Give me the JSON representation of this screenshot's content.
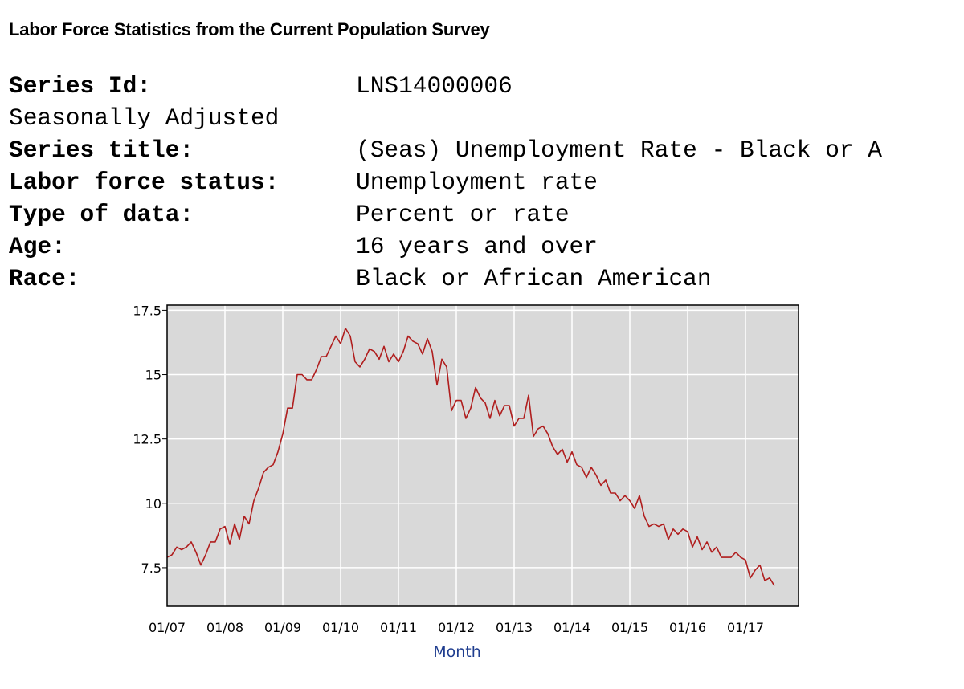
{
  "header": {
    "title": "Labor Force Statistics from the Current Population Survey"
  },
  "series_info": [
    {
      "label": "Series Id:",
      "value": "LNS14000006",
      "bold": true
    },
    {
      "label": "Seasonally Adjusted",
      "value": "",
      "bold": false
    },
    {
      "label": "Series title:",
      "value": "(Seas) Unemployment Rate - Black or A",
      "bold": true
    },
    {
      "label": "Labor force status:",
      "value": "Unemployment rate",
      "bold": true
    },
    {
      "label": "Type of data:",
      "value": "Percent or rate",
      "bold": true
    },
    {
      "label": "Age:",
      "value": "16 years and over",
      "bold": true
    },
    {
      "label": "Race:",
      "value": "Black or African American",
      "bold": true
    }
  ],
  "colors": {
    "plot_background": "#d9d9d9",
    "grid": "#ffffff",
    "line": "#b01e1e",
    "frame": "#000000"
  },
  "chart_data": {
    "type": "line",
    "title": "",
    "xlabel": "Month",
    "ylabel": "",
    "ylim": [
      6.0,
      17.7
    ],
    "xlim": [
      0,
      131
    ],
    "x_ticks": [
      0,
      12,
      24,
      36,
      48,
      60,
      72,
      84,
      96,
      108,
      120
    ],
    "x_tick_labels": [
      "01/07",
      "01/08",
      "01/09",
      "01/10",
      "01/11",
      "01/12",
      "01/13",
      "01/14",
      "01/15",
      "01/16",
      "01/17"
    ],
    "y_ticks": [
      7.5,
      10,
      12.5,
      15,
      17.5
    ],
    "y_tick_labels": [
      "7.5",
      "10",
      "12.5",
      "15",
      "17.5"
    ],
    "grid": true,
    "series": [
      {
        "name": "Unemployment Rate - Black or African American",
        "x_start": "01/07",
        "frequency": "monthly",
        "values": [
          7.9,
          8.0,
          8.3,
          8.2,
          8.3,
          8.5,
          8.1,
          7.6,
          8.0,
          8.5,
          8.5,
          9.0,
          9.1,
          8.4,
          9.2,
          8.6,
          9.5,
          9.2,
          10.1,
          10.6,
          11.2,
          11.4,
          11.5,
          12.0,
          12.7,
          13.7,
          13.7,
          15.0,
          15.0,
          14.8,
          14.8,
          15.2,
          15.7,
          15.7,
          16.1,
          16.5,
          16.2,
          16.8,
          16.5,
          15.5,
          15.3,
          15.6,
          16.0,
          15.9,
          15.6,
          16.1,
          15.5,
          15.8,
          15.5,
          15.9,
          16.5,
          16.3,
          16.2,
          15.8,
          16.4,
          15.9,
          14.6,
          15.6,
          15.3,
          13.6,
          14.0,
          14.0,
          13.3,
          13.7,
          14.5,
          14.1,
          13.9,
          13.3,
          14.0,
          13.4,
          13.8,
          13.8,
          13.0,
          13.3,
          13.3,
          14.2,
          12.6,
          12.9,
          13.0,
          12.7,
          12.2,
          11.9,
          12.1,
          11.6,
          12.0,
          11.5,
          11.4,
          11.0,
          11.4,
          11.1,
          10.7,
          10.9,
          10.4,
          10.4,
          10.1,
          10.3,
          10.1,
          9.8,
          10.3,
          9.5,
          9.1,
          9.2,
          9.1,
          9.2,
          8.6,
          9.0,
          8.8,
          9.0,
          8.9,
          8.3,
          8.7,
          8.2,
          8.5,
          8.1,
          8.3,
          7.9,
          7.9,
          7.9,
          8.1,
          7.9,
          7.8,
          7.1,
          7.4,
          7.6,
          7.0,
          7.1,
          6.8
        ]
      }
    ]
  }
}
